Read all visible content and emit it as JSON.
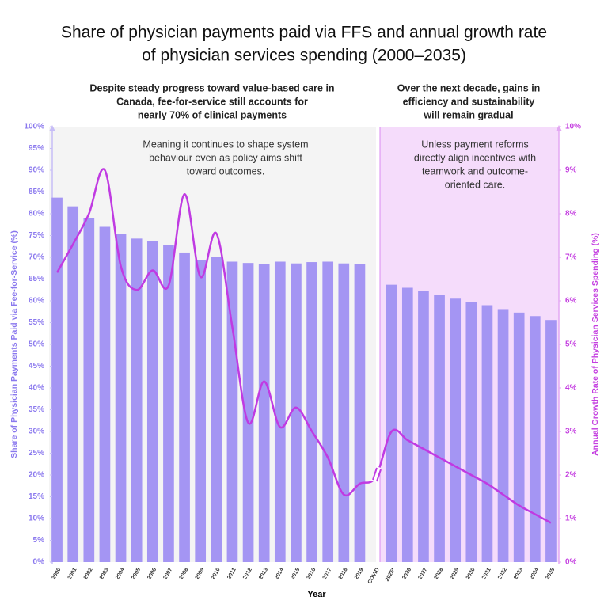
{
  "chart_data": {
    "type": "bar",
    "title": [
      "Share of physician payments paid via FFS and annual growth rate",
      "of physician services spending (2000–2035)"
    ],
    "panel_headers": [
      [
        "Despite steady progress toward value-based care in",
        "Canada, fee-for-service still accounts for",
        "nearly 70% of clinical payments"
      ],
      [
        "Over the next decade, gains in",
        "efficiency and sustainability",
        "will remain gradual"
      ]
    ],
    "annotations": [
      [
        "Meaning it continues to shape system",
        "behaviour even as policy aims shift",
        "toward outcomes."
      ],
      [
        "Unless payment reforms",
        "directly align incentives with",
        "teamwork and outcome-",
        "oriented care."
      ]
    ],
    "x_label": "Year",
    "y_label": "Share of Physician Payments Paid via Fee-for-Service (%)",
    "y2_label": "Annual Growth Rate of  Physician Services Spending (%)",
    "categories": [
      "2000",
      "2001",
      "2002",
      "2003",
      "2004",
      "2005",
      "2006",
      "2007",
      "2008",
      "2009",
      "2010",
      "2011",
      "2012",
      "2013",
      "2014",
      "2015",
      "2016",
      "2017",
      "2018",
      "2019",
      "COVID",
      "2025*",
      "2026",
      "2027",
      "2028",
      "2029",
      "2030",
      "2031",
      "2032",
      "2033",
      "2034",
      "2035"
    ],
    "series": [
      {
        "name": "FFS share",
        "kind": "bar",
        "color": "#a495f3",
        "values": [
          83.7,
          81.7,
          79,
          77,
          75.4,
          74.3,
          73.7,
          72.8,
          71.1,
          69.4,
          70,
          69,
          68.7,
          68.4,
          69,
          68.6,
          68.9,
          69,
          68.6,
          68.4,
          null,
          63.7,
          63,
          62.2,
          61.3,
          60.5,
          59.8,
          59,
          58.1,
          57.3,
          56.5,
          55.6
        ]
      },
      {
        "name": "Growth rate",
        "kind": "line",
        "axis": "y2",
        "color": "#c03ae2",
        "values": [
          6.65,
          7.3,
          8.0,
          9.0,
          6.8,
          6.25,
          6.7,
          6.35,
          8.45,
          6.55,
          7.55,
          5.4,
          3.2,
          4.15,
          3.1,
          3.55,
          3.0,
          2.4,
          1.55,
          1.8,
          1.95,
          3.0,
          2.8,
          2.6,
          2.4,
          2.2,
          2.0,
          1.8,
          1.55,
          1.3,
          1.1,
          0.9
        ]
      }
    ],
    "ylim": [
      0,
      100
    ],
    "yticks": [
      {
        "value": 0,
        "label": "0%"
      },
      {
        "value": 5,
        "label": "5%"
      },
      {
        "value": 10,
        "label": "10%"
      },
      {
        "value": 15,
        "label": "15%"
      },
      {
        "value": 20,
        "label": "20%"
      },
      {
        "value": 25,
        "label": "25%"
      },
      {
        "value": 30,
        "label": "30%"
      },
      {
        "value": 35,
        "label": "35%"
      },
      {
        "value": 40,
        "label": "40%"
      },
      {
        "value": 45,
        "label": "45%"
      },
      {
        "value": 50,
        "label": "50%"
      },
      {
        "value": 55,
        "label": "55%"
      },
      {
        "value": 60,
        "label": "60%"
      },
      {
        "value": 65,
        "label": "65%"
      },
      {
        "value": 70,
        "label": "70%"
      },
      {
        "value": 75,
        "label": "75%"
      },
      {
        "value": 80,
        "label": "80%"
      },
      {
        "value": 85,
        "label": "85%"
      },
      {
        "value": 90,
        "label": "90%"
      },
      {
        "value": 95,
        "label": "95%"
      },
      {
        "value": 100,
        "label": "100%"
      }
    ],
    "y2lim": [
      0,
      10
    ],
    "y2ticks": [
      {
        "value": 0,
        "label": "0%"
      },
      {
        "value": 1,
        "label": "1%"
      },
      {
        "value": 2,
        "label": "2%"
      },
      {
        "value": 3,
        "label": "3%"
      },
      {
        "value": 4,
        "label": "4%"
      },
      {
        "value": 5,
        "label": "5%"
      },
      {
        "value": 6,
        "label": "6%"
      },
      {
        "value": 7,
        "label": "7%"
      },
      {
        "value": 8,
        "label": "8%"
      },
      {
        "value": 9,
        "label": "9%"
      },
      {
        "value": 10,
        "label": "10%"
      }
    ]
  }
}
